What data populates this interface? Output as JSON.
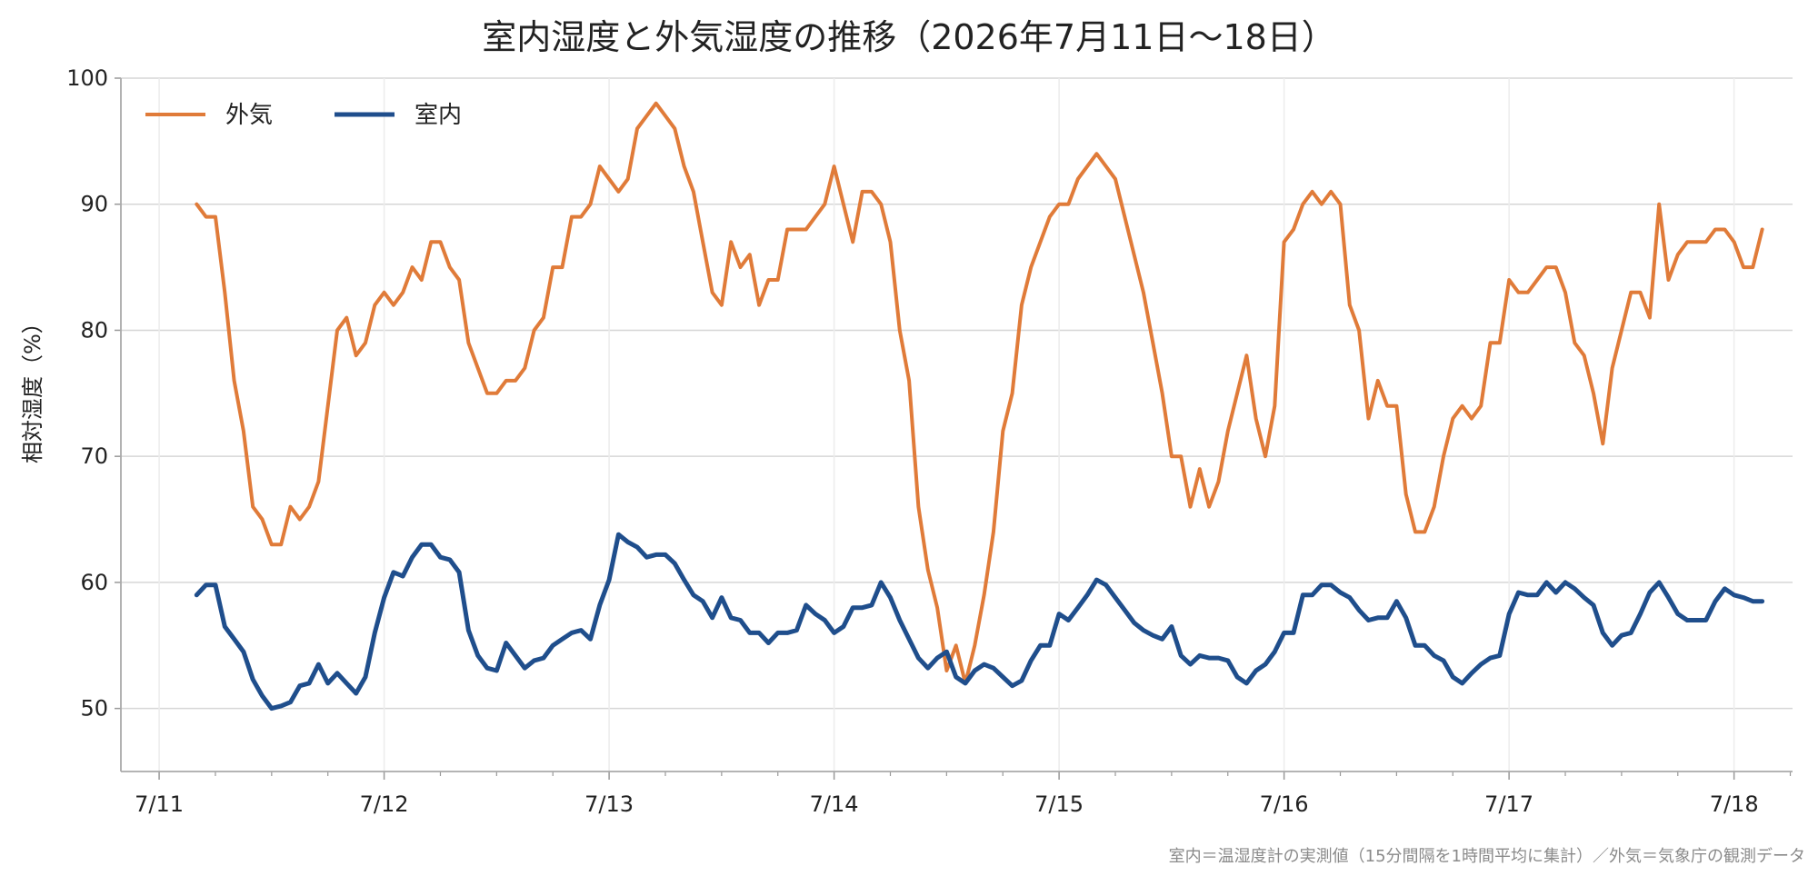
{
  "chart_data": {
    "type": "line",
    "title": "室内湿度と外気湿度の推移（2026年7月11日〜18日）",
    "ylabel": "相対湿度（%）",
    "xlabel": "",
    "ylim": [
      45,
      100
    ],
    "xlim": [
      -0.17,
      7.26
    ],
    "yticks": [
      50,
      60,
      70,
      80,
      90,
      100
    ],
    "xticks": [
      {
        "pos": 0,
        "label": "7/11"
      },
      {
        "pos": 1,
        "label": "7/12"
      },
      {
        "pos": 2,
        "label": "7/13"
      },
      {
        "pos": 3,
        "label": "7/14"
      },
      {
        "pos": 4,
        "label": "7/15"
      },
      {
        "pos": 5,
        "label": "7/16"
      },
      {
        "pos": 6,
        "label": "7/17"
      },
      {
        "pos": 7,
        "label": "7/18"
      }
    ],
    "grid": true,
    "legend_position": "top-left",
    "x_start": 0.1667,
    "x_step": 0.041667,
    "series": [
      {
        "name": "外気",
        "color": "#e07b39",
        "values": [
          90,
          89,
          89,
          83,
          76,
          72,
          66,
          65,
          63,
          63,
          66,
          65,
          66,
          68,
          74,
          80,
          81,
          78,
          79,
          82,
          83,
          82,
          83,
          85,
          84,
          87,
          87,
          85,
          84,
          79,
          77,
          75,
          75,
          76,
          76,
          77,
          80,
          81,
          85,
          85,
          89,
          89,
          90,
          93,
          92,
          91,
          92,
          96,
          97,
          98,
          97,
          96,
          93,
          91,
          87,
          83,
          82,
          87,
          85,
          86,
          82,
          84,
          84,
          88,
          88,
          88,
          89,
          90,
          93,
          90,
          87,
          91,
          91,
          90,
          87,
          80,
          76,
          66,
          61,
          58,
          53,
          55,
          52,
          55,
          59,
          64,
          72,
          75,
          82,
          85,
          87,
          89,
          90,
          90,
          92,
          93,
          94,
          93,
          92,
          89,
          86,
          83,
          79,
          75,
          70,
          70,
          66,
          69,
          66,
          68,
          72,
          75,
          78,
          73,
          70,
          74,
          87,
          88,
          90,
          91,
          90,
          91,
          90,
          82,
          80,
          73,
          76,
          74,
          74,
          67,
          64,
          64,
          66,
          70,
          73,
          74,
          73,
          74,
          79,
          79,
          84,
          83,
          83,
          84,
          85,
          85,
          83,
          79,
          78,
          75,
          71,
          77,
          80,
          83,
          83,
          81,
          90,
          84,
          86,
          87,
          87,
          87,
          88,
          88,
          87,
          85,
          85,
          88
        ]
      },
      {
        "name": "室内",
        "color": "#1f4e8c",
        "values": [
          59,
          59.8,
          59.8,
          56.5,
          55.5,
          54.5,
          52.3,
          51,
          50,
          50.2,
          50.5,
          51.8,
          52,
          53.5,
          52,
          52.8,
          52,
          51.2,
          52.5,
          56,
          58.8,
          60.8,
          60.5,
          62,
          63,
          63,
          62,
          61.8,
          60.8,
          56.2,
          54.2,
          53.2,
          53,
          55.2,
          54.2,
          53.2,
          53.8,
          54,
          55,
          55.5,
          56,
          56.2,
          55.5,
          58.2,
          60.2,
          63.8,
          63.2,
          62.8,
          62,
          62.2,
          62.2,
          61.5,
          60.2,
          59,
          58.5,
          57.2,
          58.8,
          57.2,
          57,
          56,
          56,
          55.2,
          56,
          56,
          56.2,
          58.2,
          57.5,
          57,
          56,
          56.5,
          58,
          58,
          58.2,
          60,
          58.8,
          57,
          55.5,
          54,
          53.2,
          54,
          54.5,
          52.5,
          52,
          53,
          53.5,
          53.2,
          52.5,
          51.8,
          52.2,
          53.8,
          55,
          55,
          57.5,
          57,
          58,
          59,
          60.2,
          59.8,
          58.8,
          57.8,
          56.8,
          56.2,
          55.8,
          55.5,
          56.5,
          54.2,
          53.5,
          54.2,
          54,
          54,
          53.8,
          52.5,
          52,
          53,
          53.5,
          54.5,
          56,
          56,
          59,
          59,
          59.8,
          59.8,
          59.2,
          58.8,
          57.8,
          57,
          57.2,
          57.2,
          58.5,
          57.2,
          55,
          55,
          54.2,
          53.8,
          52.5,
          52,
          52.8,
          53.5,
          54,
          54.2,
          57.5,
          59.2,
          59,
          59,
          60,
          59.2,
          60,
          59.5,
          58.8,
          58.2,
          56,
          55,
          55.8,
          56,
          57.5,
          59.2,
          60,
          58.8,
          57.5,
          57,
          57,
          57,
          58.5,
          59.5,
          59,
          58.8,
          58.5,
          58.5
        ]
      }
    ]
  },
  "footer": {
    "source": "室内＝温湿度計の実測値（15分間隔を1時間平均に集計）／外気＝気象庁の観測データ"
  }
}
